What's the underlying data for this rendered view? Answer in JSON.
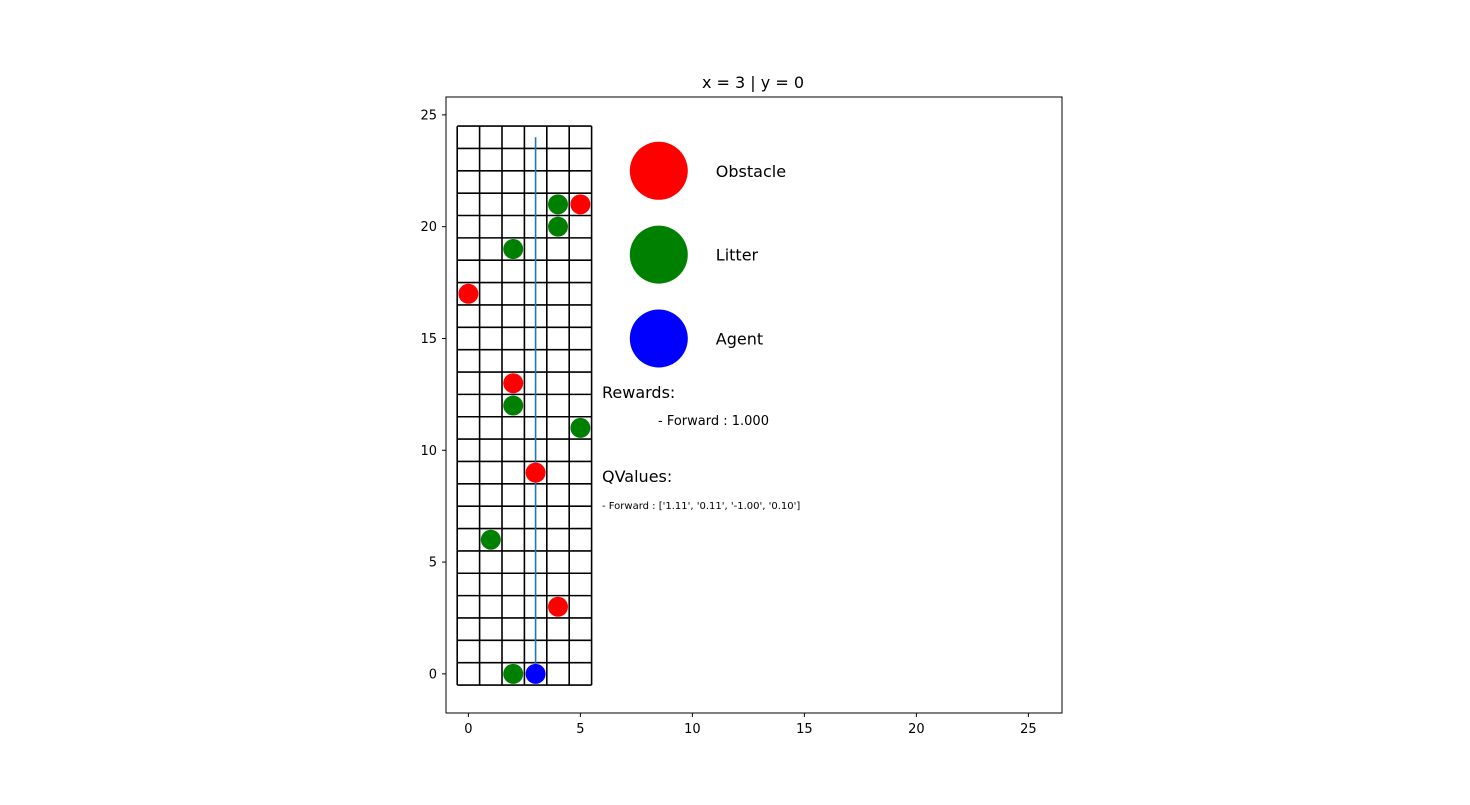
{
  "chart_data": {
    "type": "scatter",
    "title": "x = 3 | y = 0",
    "xlim": [
      -1,
      26.5
    ],
    "ylim": [
      -1.75,
      25.8
    ],
    "xticks": [
      0,
      5,
      10,
      15,
      20,
      25
    ],
    "yticks": [
      0,
      5,
      10,
      15,
      20,
      25
    ],
    "grid": {
      "cols": 6,
      "rows": 25,
      "x_min": -0.5,
      "x_max": 5.5,
      "y_min": -0.5,
      "y_max": 24.5
    },
    "series": [
      {
        "name": "Obstacle",
        "color": "#ff0000",
        "points": [
          [
            5,
            21
          ],
          [
            0,
            17
          ],
          [
            2,
            13
          ],
          [
            3,
            9
          ],
          [
            4,
            3
          ]
        ]
      },
      {
        "name": "Litter",
        "color": "#008000",
        "points": [
          [
            4,
            21
          ],
          [
            4,
            20
          ],
          [
            2,
            19
          ],
          [
            2,
            12
          ],
          [
            5,
            11
          ],
          [
            1,
            6
          ],
          [
            2,
            0
          ]
        ]
      },
      {
        "name": "Agent",
        "color": "#0000ff",
        "points": [
          [
            3,
            0
          ]
        ]
      }
    ],
    "path": {
      "color": "#1f77b4",
      "points": [
        [
          3,
          0
        ],
        [
          3,
          24
        ]
      ]
    },
    "legend": {
      "placement": "right of grid",
      "entries": [
        {
          "label": "Obstacle",
          "color": "#ff0000",
          "x": 8.5,
          "y": 22.5
        },
        {
          "label": "Litter",
          "color": "#008000",
          "x": 8.5,
          "y": 18.75
        },
        {
          "label": "Agent",
          "color": "#0000ff",
          "x": 8.5,
          "y": 15
        }
      ]
    },
    "annotations": {
      "rewards_heading": "Rewards:",
      "rewards_items": [
        "- Forward : 1.000"
      ],
      "qvalues_heading": "QValues:",
      "qvalues_items": [
        "- Forward : ['1.11', '0.11', '-1.00', '0.10']"
      ]
    }
  }
}
